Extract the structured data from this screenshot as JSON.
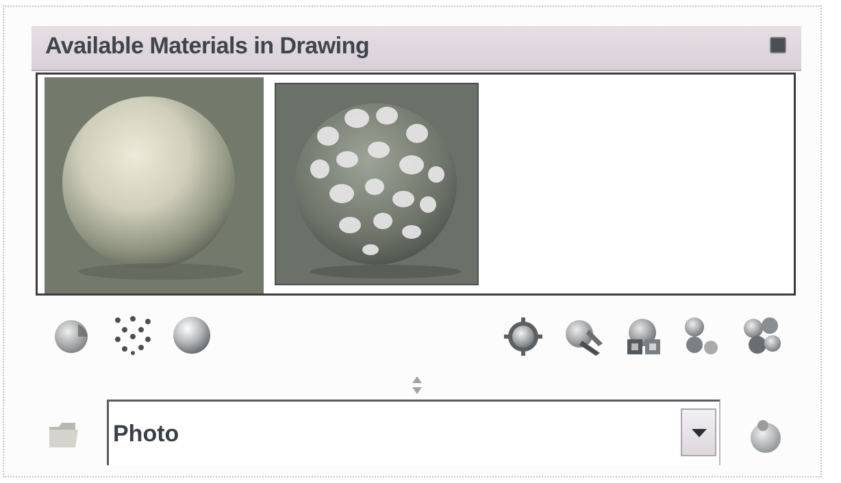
{
  "palette": {
    "title": "Available Materials in Drawing"
  },
  "swatches": [
    {
      "name": "material-swatch-1",
      "icon": "matte-sphere-preview"
    },
    {
      "name": "material-swatch-2",
      "icon": "spotted-sphere-preview"
    }
  ],
  "toolbar_left": [
    {
      "name": "toggle-display-button",
      "icon": "sphere-icon"
    },
    {
      "name": "toggle-pattern-button",
      "icon": "dots-pattern-icon"
    },
    {
      "name": "swatch-background-button",
      "icon": "glossy-sphere-icon"
    }
  ],
  "toolbar_right": [
    {
      "name": "create-material-button",
      "icon": "sphere-gear-icon"
    },
    {
      "name": "apply-material-button",
      "icon": "sphere-brush-icon"
    },
    {
      "name": "apply-to-objects-button",
      "icon": "sphere-stack-icon"
    },
    {
      "name": "remove-material-button",
      "icon": "sphere-remove-icon"
    },
    {
      "name": "purge-materials-button",
      "icon": "sphere-cluster-icon"
    }
  ],
  "library": {
    "selected": "Photo",
    "folder_icon": "folder-icon",
    "library_icon": "sphere-add-icon"
  }
}
